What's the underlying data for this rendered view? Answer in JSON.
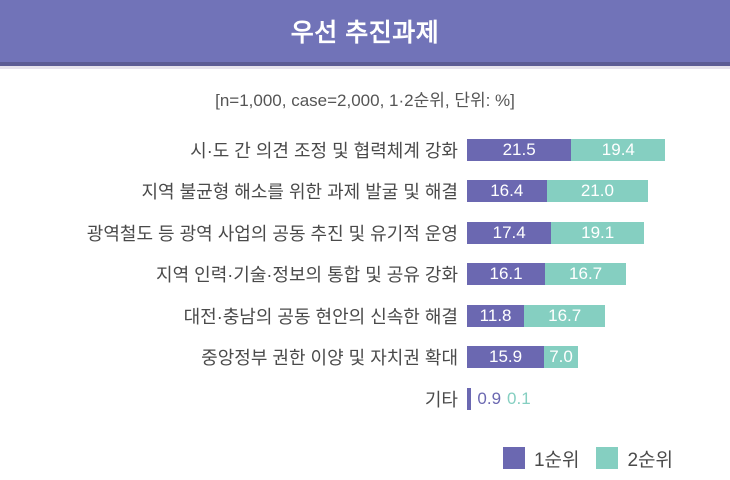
{
  "header": {
    "title": "우선 추진과제"
  },
  "subtitle": "[n=1,000, case=2,000, 1·2순위, 단위: %]",
  "legend": {
    "items": [
      {
        "label": "1순위"
      },
      {
        "label": "2순위"
      }
    ]
  },
  "colors": {
    "series1": "#6b68b1",
    "series2": "#85cfc1",
    "banner": "#7173b8",
    "banner_border": "#5c5c94",
    "banner_shadow": "#e6e3ec",
    "label_text": "#4a4a4a",
    "subtitle_text": "#555555",
    "value_text": "#ffffff"
  },
  "chart_data": {
    "type": "bar",
    "orientation": "horizontal",
    "stacked": true,
    "unit": "%",
    "title": "우선 추진과제",
    "note": "[n=1,000, case=2,000, 1·2순위, 단위: %]",
    "legend_position": "bottom-right",
    "xlim": [
      0,
      41
    ],
    "categories": [
      "시·도 간 의견 조정 및 협력체계 강화",
      "지역 불균형 해소를 위한 과제 발굴 및 해결",
      "광역철도 등 광역 사업의 공동 추진 및 유기적 운영",
      "지역 인력·기술·정보의 통합 및 공유 강화",
      "대전·충남의 공동 현안의 신속한 해결",
      "중앙정부 권한 이양 및 자치권 확대",
      "기타"
    ],
    "series": [
      {
        "name": "1순위",
        "values": [
          21.5,
          16.4,
          17.4,
          16.1,
          11.8,
          15.9,
          0.9
        ]
      },
      {
        "name": "2순위",
        "values": [
          19.4,
          21.0,
          19.1,
          16.7,
          16.7,
          7.0,
          0.1
        ]
      }
    ]
  }
}
